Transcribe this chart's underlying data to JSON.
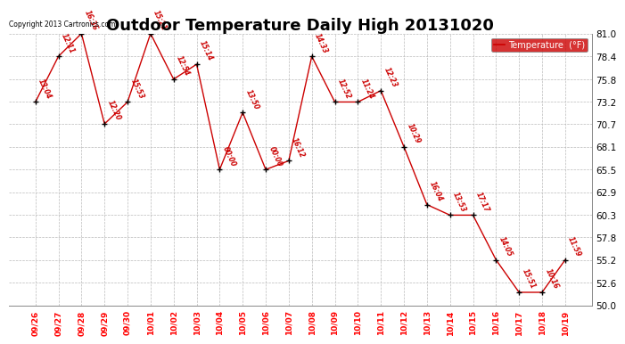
{
  "title": "Outdoor Temperature Daily High 20131020",
  "copyright_text": "Copyright 2013 Cartronics.com",
  "legend_label": "Temperature  (°F)",
  "dates": [
    "09/26",
    "09/27",
    "09/28",
    "09/29",
    "09/30",
    "10/01",
    "10/02",
    "10/03",
    "10/04",
    "10/05",
    "10/06",
    "10/07",
    "10/08",
    "10/09",
    "10/10",
    "10/11",
    "10/12",
    "10/13",
    "10/14",
    "10/15",
    "10/16",
    "10/17",
    "10/18",
    "10/19"
  ],
  "temperatures": [
    73.2,
    78.4,
    81.0,
    70.7,
    73.2,
    81.0,
    75.8,
    77.5,
    65.5,
    72.0,
    65.5,
    66.5,
    78.4,
    73.2,
    73.2,
    74.5,
    68.1,
    61.5,
    60.3,
    60.3,
    55.2,
    51.5,
    51.5,
    55.2
  ],
  "labels": [
    "13:04",
    "12:11",
    "16:36",
    "12:20",
    "15:53",
    "15:21",
    "12:54",
    "15:14",
    "00:00",
    "13:50",
    "00:00",
    "16:12",
    "14:33",
    "12:52",
    "11:24",
    "12:23",
    "10:29",
    "16:04",
    "13:53",
    "17:17",
    "14:05",
    "15:51",
    "10:16",
    "11:59"
  ],
  "line_color": "#cc0000",
  "marker_color": "#000000",
  "bg_color": "#ffffff",
  "grid_color": "#bbbbbb",
  "ylim": [
    50.0,
    81.0
  ],
  "yticks": [
    50.0,
    52.6,
    55.2,
    57.8,
    60.3,
    62.9,
    65.5,
    68.1,
    70.7,
    73.2,
    75.8,
    78.4,
    81.0
  ],
  "title_fontsize": 13,
  "legend_bg": "#cc0000",
  "legend_text_color": "#ffffff"
}
